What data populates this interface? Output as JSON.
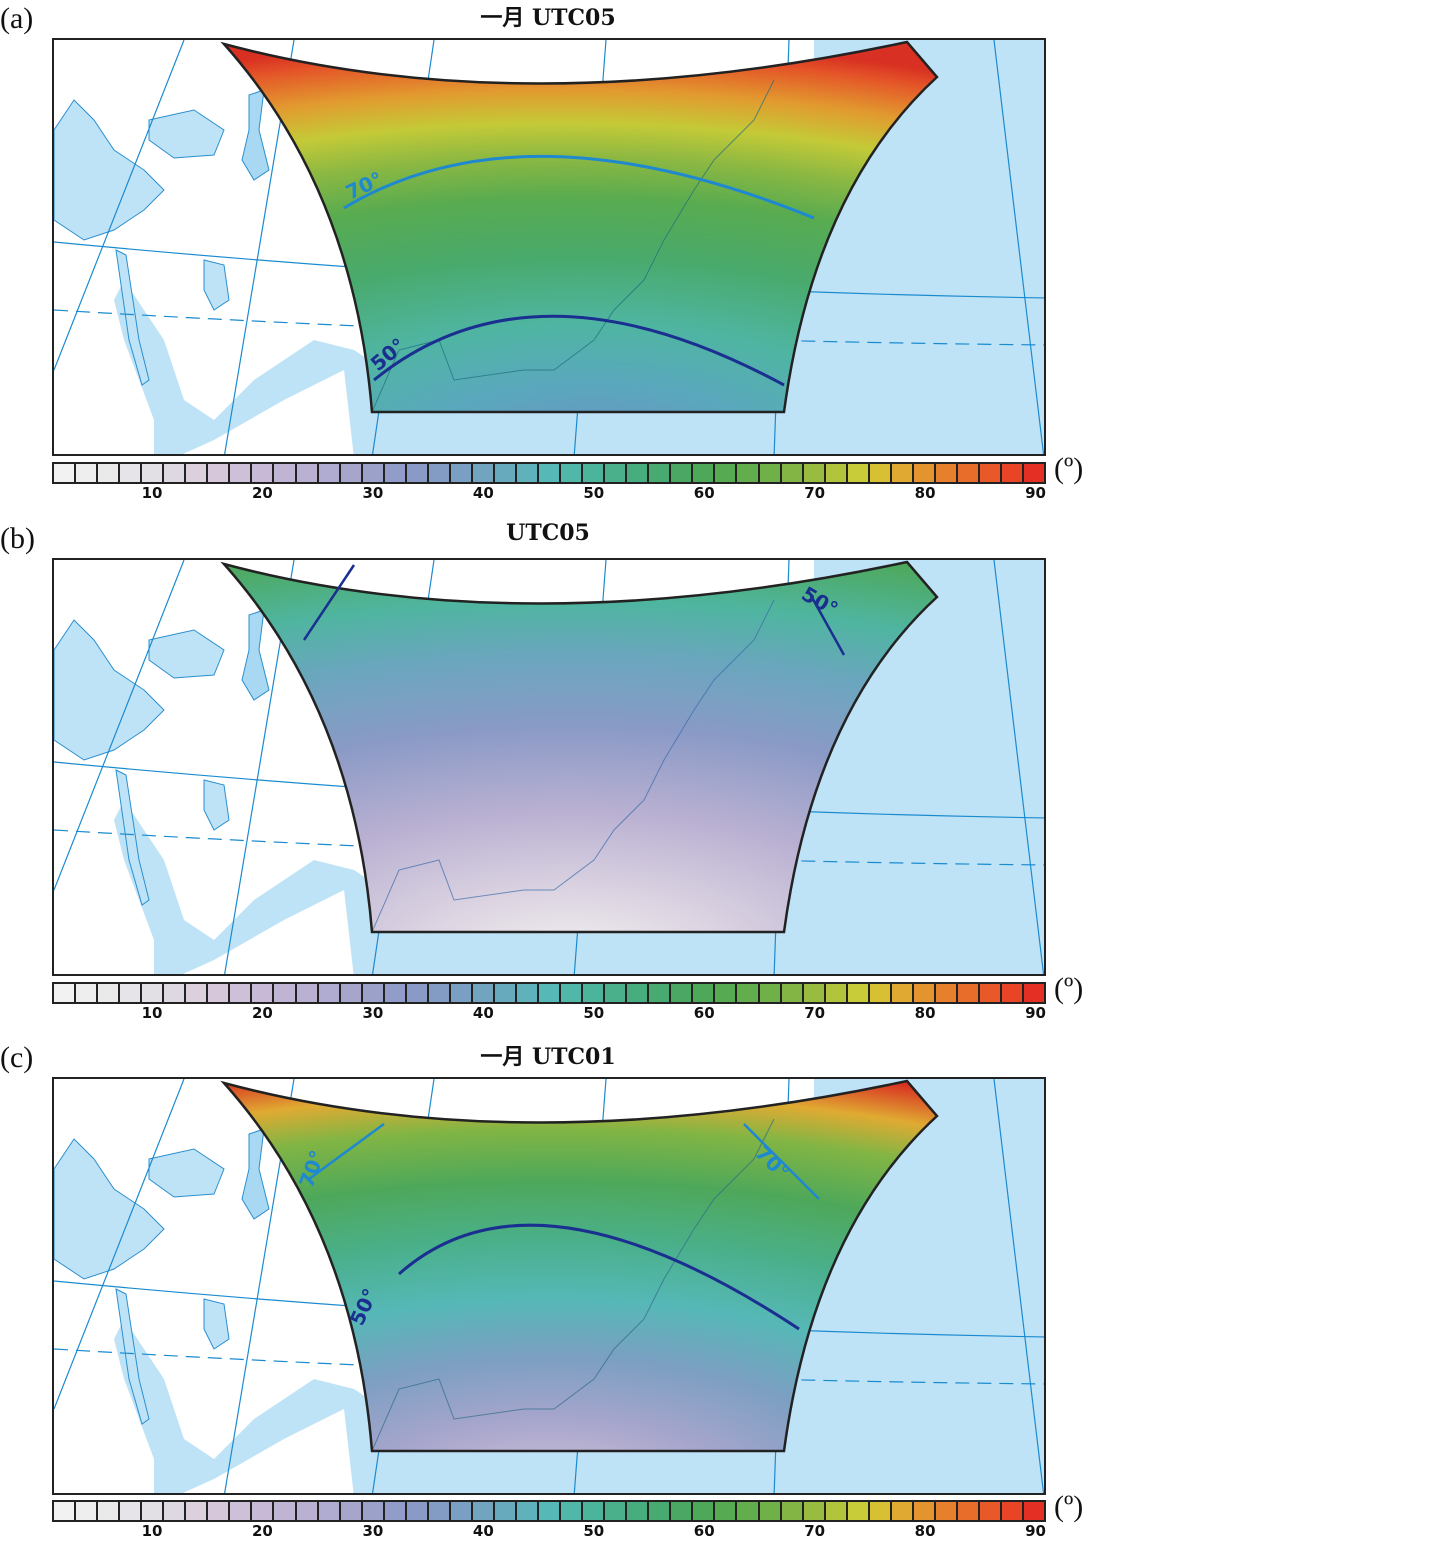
{
  "figure": {
    "unit_label": "(º)",
    "colorbar": {
      "min": 0,
      "max": 90,
      "step": 2,
      "tick_labels": [
        "10",
        "20",
        "30",
        "40",
        "50",
        "60",
        "70",
        "80",
        "90"
      ],
      "colors": [
        "#f2f2f2",
        "#eeeeee",
        "#eaeaeb",
        "#e6e4e8",
        "#e2dfe5",
        "#ddd8e2",
        "#dcd0dd",
        "#d6c8da",
        "#cfc0da",
        "#c8b9d6",
        "#c0b4d4",
        "#b9b0d2",
        "#b0abd0",
        "#a6a5cc",
        "#9ca1ca",
        "#919dc8",
        "#8a9ac6",
        "#839cc4",
        "#7b9fc2",
        "#72a4c0",
        "#68aabd",
        "#5fb1bb",
        "#56b8b7",
        "#50b7a9",
        "#4cb49b",
        "#4ab08c",
        "#48ad7e",
        "#48aa70",
        "#4aa864",
        "#4ea85a",
        "#56aa52",
        "#62ad4c",
        "#70b048",
        "#82b544",
        "#98bc40",
        "#b2c43c",
        "#c8cc38",
        "#d8c035",
        "#e0aa32",
        "#e4942e",
        "#e6802c",
        "#e86c2a",
        "#e85828",
        "#e84426",
        "#e43024"
      ]
    },
    "panels": [
      {
        "id": "a",
        "label": "(a)",
        "title": "一月 UTC05",
        "contours": [
          {
            "value": "70°",
            "color": "#1e88d0"
          },
          {
            "value": "50°",
            "color": "#1a2f8f"
          }
        ],
        "field_description": "high elevation angles (~80-90) at northern corners, green (~60-70) in middle, teal (~45-50) in south"
      },
      {
        "id": "b",
        "label": "(b)",
        "title": "UTC05",
        "contours": [
          {
            "value": "50°",
            "color": "#1a2f8f"
          }
        ],
        "field_description": "low values (~0-10) near south center, purple (~30) mid, green (~55-60) at northern corners"
      },
      {
        "id": "c",
        "label": "(c)",
        "title": "一月 UTC01",
        "contours": [
          {
            "value": "70°",
            "color": "#1e88d0"
          },
          {
            "value": "70°",
            "color": "#1e88d0"
          },
          {
            "value": "50°",
            "color": "#1a2f8f"
          }
        ],
        "field_description": "red (~85-90) at NW and NE corners, green (~60-70) north, purple (~20-30) south center"
      }
    ],
    "map_colors": {
      "ocean": "#bfe3f6",
      "land": "#ffffff",
      "coastline": "#2a8fd0",
      "graticule": "#1b8bd0",
      "domain_border": "#222222"
    }
  }
}
